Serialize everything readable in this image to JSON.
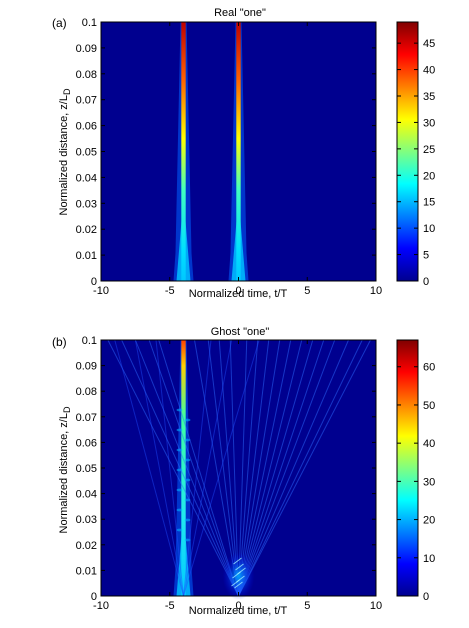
{
  "figure": {
    "panels": [
      {
        "tag": "(a)",
        "title": "Real \"one\""
      },
      {
        "tag": "(b)",
        "title": "Ghost \"one\""
      }
    ]
  },
  "chart_data": [
    {
      "type": "heatmap",
      "title": "Real \"one\"",
      "panel_label": "(a)",
      "xlabel": "Normalized time, t/T",
      "ylabel": "Normalized distance, z/L",
      "ylabel_subscript": "D",
      "xlim": [
        -10,
        10
      ],
      "ylim": [
        0,
        0.1
      ],
      "x_ticks": [
        "-10",
        "-5",
        "0",
        "5",
        "10"
      ],
      "y_ticks": [
        "0",
        "0.01",
        "0.02",
        "0.03",
        "0.04",
        "0.05",
        "0.06",
        "0.07",
        "0.08",
        "0.09",
        "0.1"
      ],
      "colorbar": {
        "range": [
          0,
          49
        ],
        "ticks": [
          "0",
          "5",
          "10",
          "15",
          "20",
          "25",
          "30",
          "35",
          "40",
          "45"
        ]
      },
      "colormap": "jet",
      "background_color": "#00008f",
      "features": [
        {
          "kind": "pulse",
          "center_t": -4,
          "peak_value": 49
        },
        {
          "kind": "pulse",
          "center_t": 0,
          "peak_value": 49
        }
      ]
    },
    {
      "type": "heatmap",
      "title": "Ghost \"one\"",
      "panel_label": "(b)",
      "xlabel": "Normalized time, t/T",
      "ylabel": "Normalized distance, z/L",
      "ylabel_subscript": "D",
      "xlim": [
        -10,
        10
      ],
      "ylim": [
        0,
        0.1
      ],
      "x_ticks": [
        "-10",
        "-5",
        "0",
        "5",
        "10"
      ],
      "y_ticks": [
        "0",
        "0.01",
        "0.02",
        "0.03",
        "0.04",
        "0.05",
        "0.06",
        "0.07",
        "0.08",
        "0.09",
        "0.1"
      ],
      "colorbar": {
        "range": [
          0,
          67
        ],
        "ticks": [
          "0",
          "10",
          "20",
          "30",
          "40",
          "50",
          "60"
        ]
      },
      "colormap": "jet",
      "background_color": "#00008f",
      "features": [
        {
          "kind": "pulse",
          "center_t": -4,
          "peak_value": 67
        },
        {
          "kind": "ghost_fan",
          "origin_t": 0,
          "origin_z": 0
        }
      ]
    }
  ]
}
